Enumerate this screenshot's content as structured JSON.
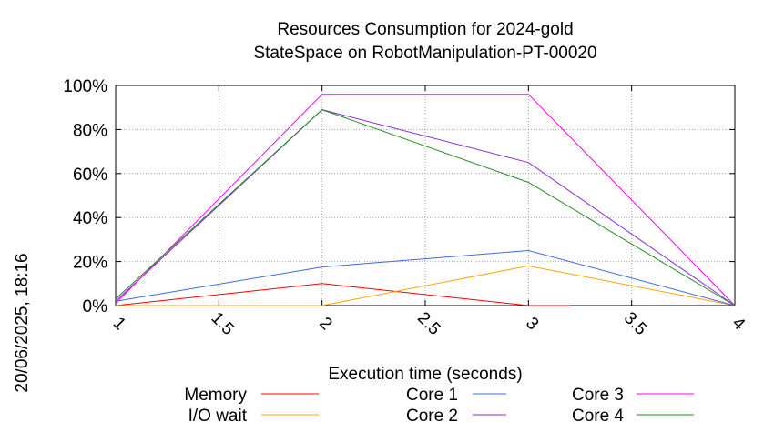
{
  "chart_data": {
    "type": "line",
    "title": "Resources Consumption for 2024-gold",
    "subtitle": "StateSpace on RobotManipulation-PT-00020",
    "xlabel": "Execution time (seconds)",
    "ylabel": "",
    "timestamp": "20/06/2025, 18:16",
    "xlim": [
      1,
      4
    ],
    "ylim": [
      0,
      100
    ],
    "x_ticks": [
      "1",
      "1.5",
      "2",
      "2.5",
      "3",
      "3.5",
      "4"
    ],
    "y_ticks": [
      "0%",
      "20%",
      "40%",
      "60%",
      "80%",
      "100%"
    ],
    "grid": true,
    "legend_position": "bottom",
    "series": [
      {
        "name": "Memory",
        "color": "#ff0000",
        "x": [
          1,
          2,
          3,
          3.2
        ],
        "y": [
          0,
          10,
          0,
          0
        ]
      },
      {
        "name": "I/O wait",
        "color": "#ffa500",
        "x": [
          1,
          2,
          3,
          4
        ],
        "y": [
          0,
          0,
          18,
          0
        ]
      },
      {
        "name": "Core 1",
        "color": "#4169e1",
        "x": [
          1,
          2,
          3,
          4
        ],
        "y": [
          2,
          17.5,
          25,
          0
        ]
      },
      {
        "name": "Core 2",
        "color": "#8a2be2",
        "x": [
          1,
          2,
          3,
          4
        ],
        "y": [
          2,
          89,
          65,
          0
        ]
      },
      {
        "name": "Core 3",
        "color": "#ff00ff",
        "x": [
          1,
          2,
          3,
          4
        ],
        "y": [
          1,
          96,
          96,
          0
        ]
      },
      {
        "name": "Core 4",
        "color": "#228b22",
        "x": [
          1,
          2,
          3,
          4
        ],
        "y": [
          3,
          89,
          56,
          0
        ]
      }
    ]
  }
}
